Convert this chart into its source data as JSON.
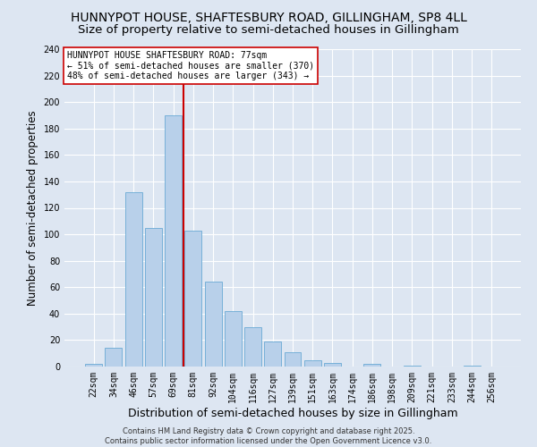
{
  "title": "HUNNYPOT HOUSE, SHAFTESBURY ROAD, GILLINGHAM, SP8 4LL",
  "subtitle": "Size of property relative to semi-detached houses in Gillingham",
  "xlabel": "Distribution of semi-detached houses by size in Gillingham",
  "ylabel": "Number of semi-detached properties",
  "categories": [
    "22sqm",
    "34sqm",
    "46sqm",
    "57sqm",
    "69sqm",
    "81sqm",
    "92sqm",
    "104sqm",
    "116sqm",
    "127sqm",
    "139sqm",
    "151sqm",
    "163sqm",
    "174sqm",
    "186sqm",
    "198sqm",
    "209sqm",
    "221sqm",
    "233sqm",
    "244sqm",
    "256sqm"
  ],
  "values": [
    2,
    14,
    132,
    105,
    190,
    103,
    64,
    42,
    30,
    19,
    11,
    5,
    3,
    0,
    2,
    0,
    1,
    0,
    0,
    1,
    0
  ],
  "bar_color": "#b8d0ea",
  "bar_edge_color": "#6aaad4",
  "vline_color": "#cc0000",
  "vline_pos": 4.5,
  "annotation_text": "HUNNYPOT HOUSE SHAFTESBURY ROAD: 77sqm\n← 51% of semi-detached houses are smaller (370)\n48% of semi-detached houses are larger (343) →",
  "annotation_box_facecolor": "#ffffff",
  "annotation_box_edgecolor": "#cc0000",
  "bg_color": "#dde6f2",
  "grid_color": "#ffffff",
  "ylim": [
    0,
    240
  ],
  "yticks": [
    0,
    20,
    40,
    60,
    80,
    100,
    120,
    140,
    160,
    180,
    200,
    220,
    240
  ],
  "footer": "Contains HM Land Registry data © Crown copyright and database right 2025.\nContains public sector information licensed under the Open Government Licence v3.0.",
  "title_fontsize": 10,
  "subtitle_fontsize": 9.5,
  "xlabel_fontsize": 9,
  "ylabel_fontsize": 8.5,
  "tick_fontsize": 7,
  "annotation_fontsize": 7,
  "footer_fontsize": 6
}
